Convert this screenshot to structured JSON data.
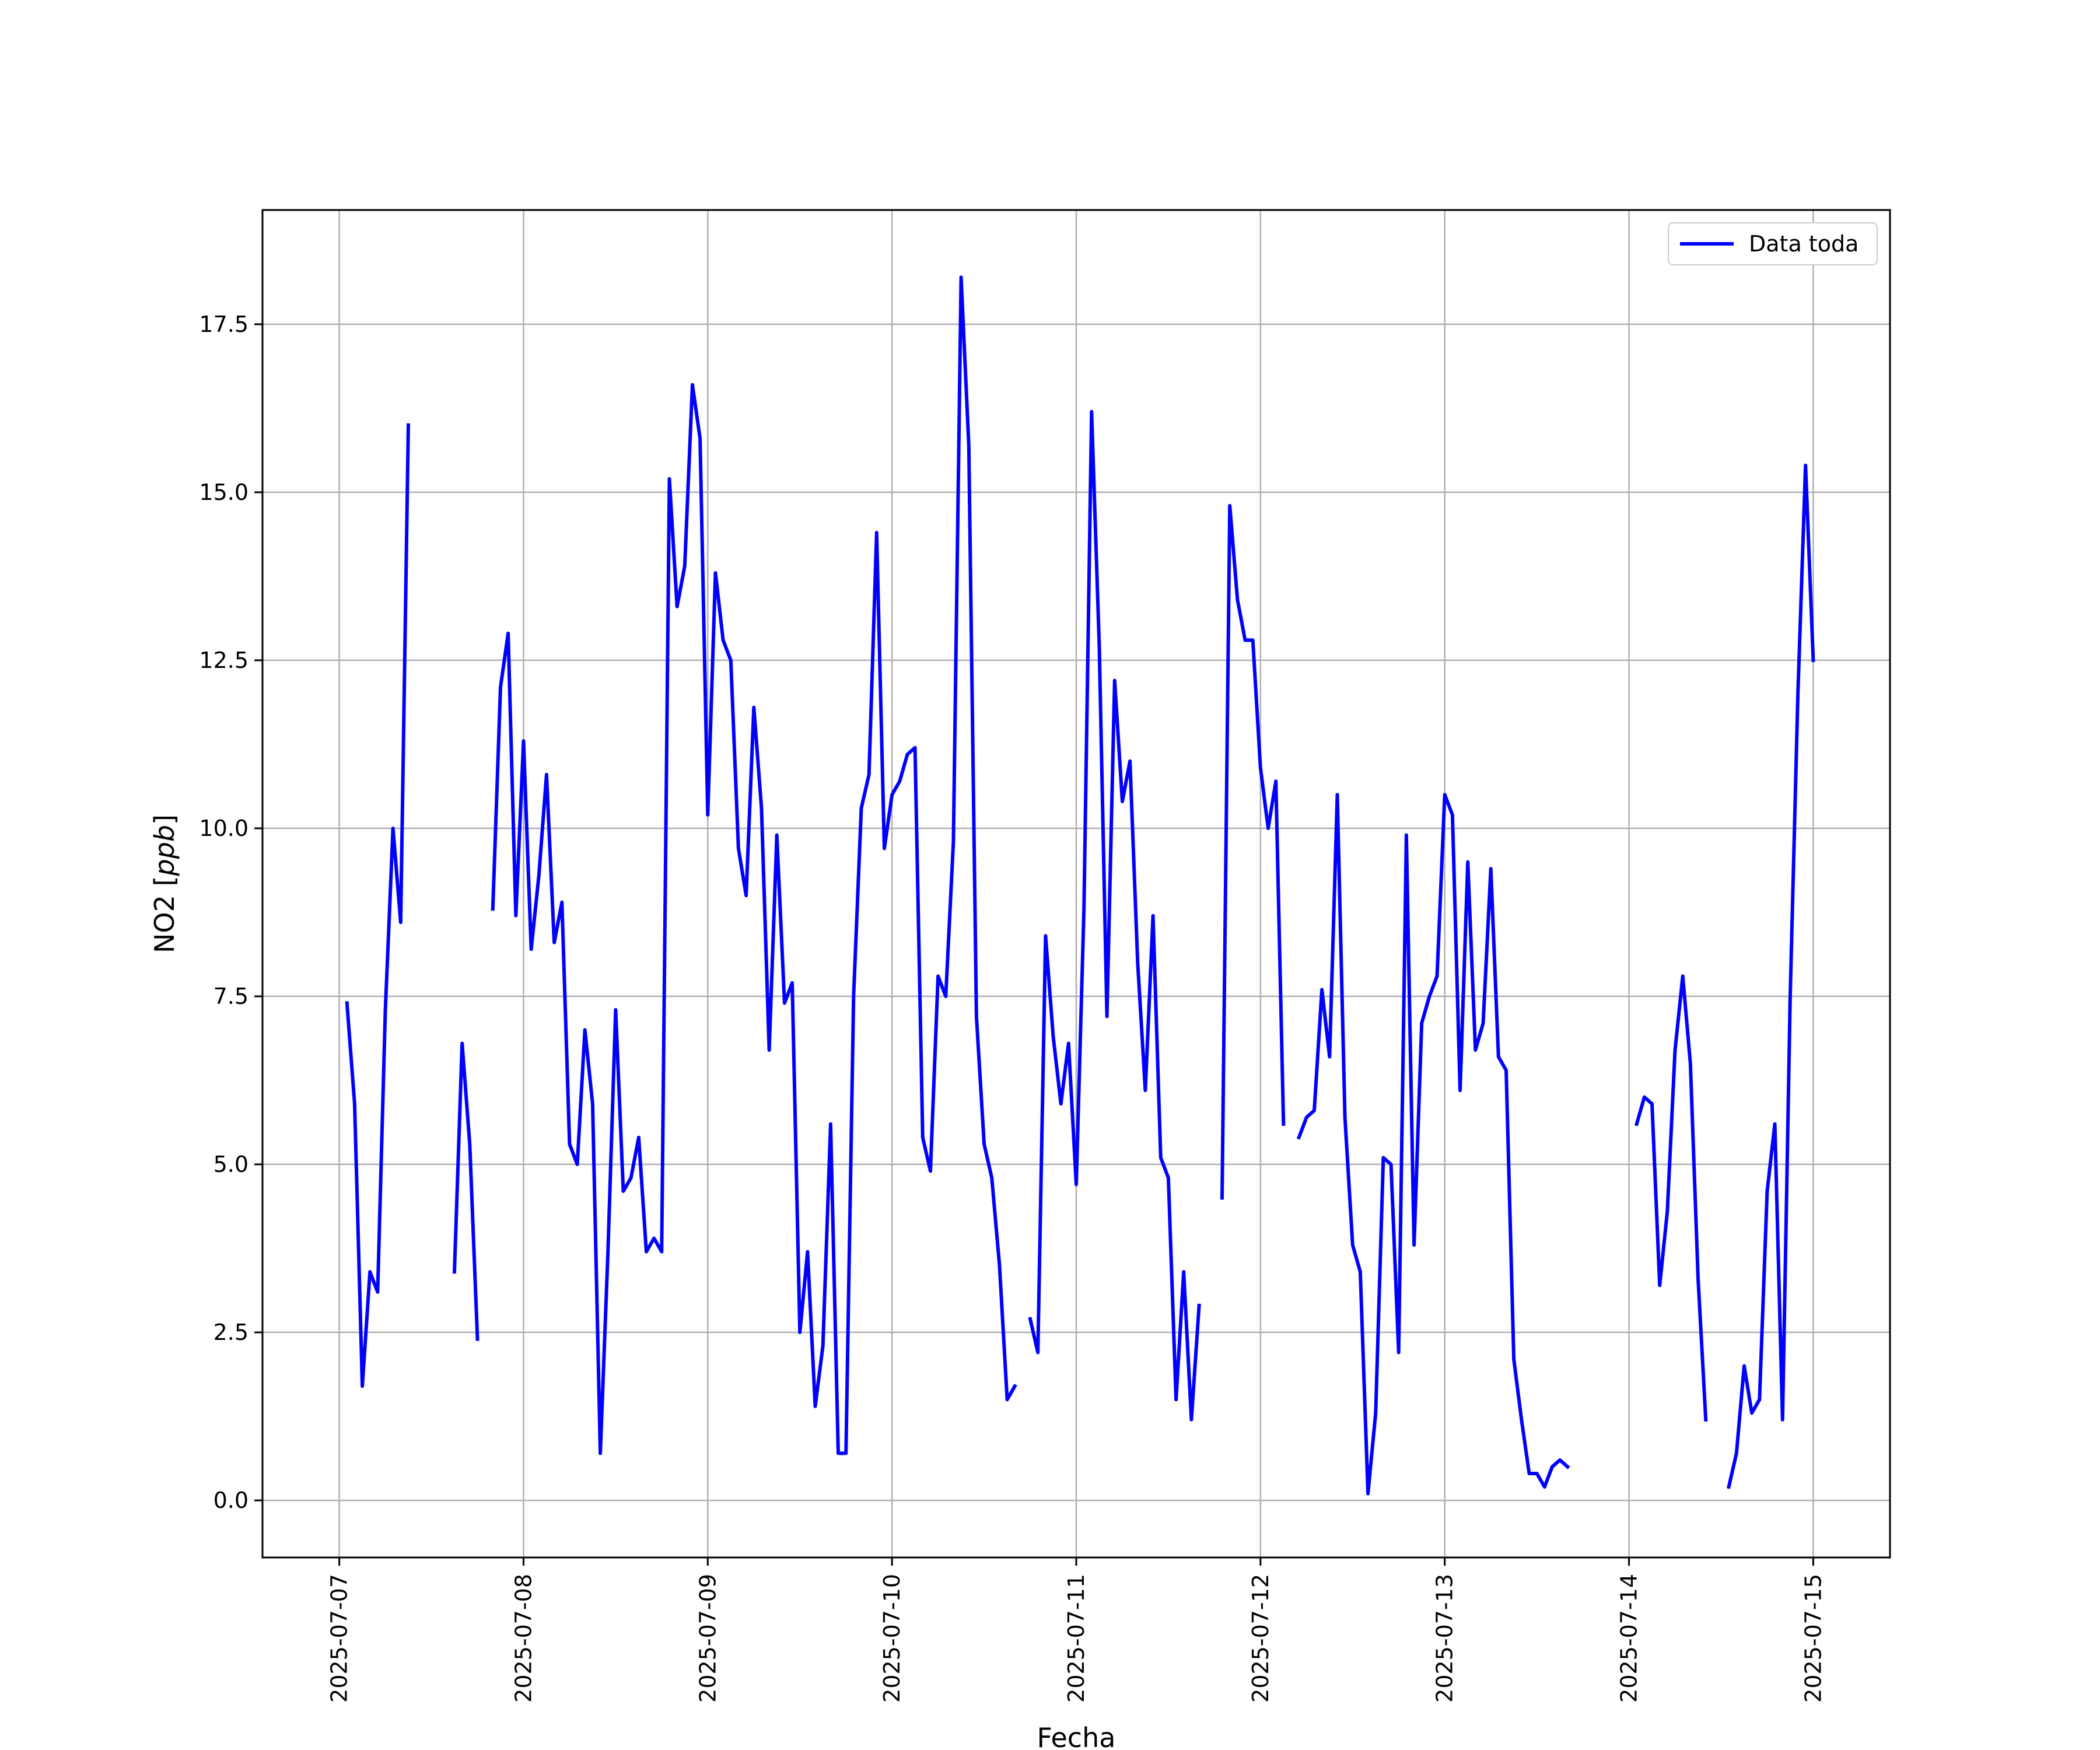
{
  "chart_data": {
    "type": "line",
    "xlabel": "Fecha",
    "ylabel": "NO2 [ppb]",
    "ylabel_main": "NO2 [",
    "ylabel_unit": "ppb",
    "ylabel_close": "]",
    "xlim": [
      "2025-07-06 14:00",
      "2025-07-15 10:00"
    ],
    "ylim": [
      -0.85,
      19.2
    ],
    "grid": true,
    "legend": {
      "position": "top-right",
      "entries": [
        "Data toda"
      ]
    },
    "x_ticks": [
      "2025-07-07",
      "2025-07-08",
      "2025-07-09",
      "2025-07-10",
      "2025-07-11",
      "2025-07-12",
      "2025-07-13",
      "2025-07-14",
      "2025-07-15"
    ],
    "y_ticks": [
      "0.0",
      "2.5",
      "5.0",
      "7.5",
      "10.0",
      "12.5",
      "15.0",
      "17.5"
    ],
    "color": "#0000ff",
    "series": [
      {
        "name": "Data toda",
        "segments": [
          [
            [
              "2025-07-07 01:00",
              7.4
            ],
            [
              "2025-07-07 02:00",
              5.9
            ],
            [
              "2025-07-07 03:00",
              1.7
            ],
            [
              "2025-07-07 04:00",
              3.4
            ],
            [
              "2025-07-07 05:00",
              3.1
            ],
            [
              "2025-07-07 06:00",
              7.3
            ],
            [
              "2025-07-07 07:00",
              10.0
            ],
            [
              "2025-07-07 08:00",
              8.6
            ],
            [
              "2025-07-07 09:00",
              16.0
            ]
          ],
          [
            [
              "2025-07-07 15:00",
              3.4
            ],
            [
              "2025-07-07 16:00",
              6.8
            ],
            [
              "2025-07-07 17:00",
              5.3
            ],
            [
              "2025-07-07 18:00",
              2.4
            ]
          ],
          [
            [
              "2025-07-07 20:00",
              8.8
            ],
            [
              "2025-07-07 21:00",
              12.1
            ],
            [
              "2025-07-07 22:00",
              12.9
            ],
            [
              "2025-07-07 23:00",
              8.7
            ],
            [
              "2025-07-08 00:00",
              11.3
            ],
            [
              "2025-07-08 01:00",
              8.2
            ],
            [
              "2025-07-08 02:00",
              9.3
            ],
            [
              "2025-07-08 03:00",
              10.8
            ],
            [
              "2025-07-08 04:00",
              8.3
            ],
            [
              "2025-07-08 05:00",
              8.9
            ],
            [
              "2025-07-08 06:00",
              5.3
            ],
            [
              "2025-07-08 07:00",
              5.0
            ],
            [
              "2025-07-08 08:00",
              7.0
            ],
            [
              "2025-07-08 09:00",
              5.9
            ],
            [
              "2025-07-08 10:00",
              0.7
            ],
            [
              "2025-07-08 11:00",
              3.7
            ],
            [
              "2025-07-08 12:00",
              7.3
            ],
            [
              "2025-07-08 13:00",
              4.6
            ],
            [
              "2025-07-08 14:00",
              4.8
            ],
            [
              "2025-07-08 15:00",
              5.4
            ],
            [
              "2025-07-08 16:00",
              3.7
            ],
            [
              "2025-07-08 17:00",
              3.9
            ],
            [
              "2025-07-08 18:00",
              3.7
            ],
            [
              "2025-07-08 19:00",
              15.2
            ],
            [
              "2025-07-08 20:00",
              13.3
            ],
            [
              "2025-07-08 21:00",
              13.9
            ],
            [
              "2025-07-08 22:00",
              16.6
            ],
            [
              "2025-07-08 23:00",
              15.8
            ],
            [
              "2025-07-09 00:00",
              10.2
            ],
            [
              "2025-07-09 01:00",
              13.8
            ],
            [
              "2025-07-09 02:00",
              12.8
            ],
            [
              "2025-07-09 03:00",
              12.5
            ],
            [
              "2025-07-09 04:00",
              9.7
            ],
            [
              "2025-07-09 05:00",
              9.0
            ],
            [
              "2025-07-09 06:00",
              11.8
            ],
            [
              "2025-07-09 07:00",
              10.3
            ],
            [
              "2025-07-09 08:00",
              6.7
            ],
            [
              "2025-07-09 09:00",
              9.9
            ],
            [
              "2025-07-09 10:00",
              7.4
            ],
            [
              "2025-07-09 11:00",
              7.7
            ],
            [
              "2025-07-09 12:00",
              2.5
            ],
            [
              "2025-07-09 13:00",
              3.7
            ],
            [
              "2025-07-09 14:00",
              1.4
            ],
            [
              "2025-07-09 15:00",
              2.3
            ],
            [
              "2025-07-09 16:00",
              5.6
            ],
            [
              "2025-07-09 17:00",
              0.7
            ],
            [
              "2025-07-09 18:00",
              0.7
            ],
            [
              "2025-07-09 19:00",
              7.5
            ],
            [
              "2025-07-09 20:00",
              10.3
            ],
            [
              "2025-07-09 21:00",
              10.8
            ],
            [
              "2025-07-09 22:00",
              14.4
            ],
            [
              "2025-07-09 23:00",
              9.7
            ],
            [
              "2025-07-10 00:00",
              10.5
            ],
            [
              "2025-07-10 01:00",
              10.7
            ],
            [
              "2025-07-10 02:00",
              11.1
            ],
            [
              "2025-07-10 03:00",
              11.2
            ],
            [
              "2025-07-10 04:00",
              5.4
            ],
            [
              "2025-07-10 05:00",
              4.9
            ],
            [
              "2025-07-10 06:00",
              7.8
            ],
            [
              "2025-07-10 07:00",
              7.5
            ],
            [
              "2025-07-10 08:00",
              9.8
            ],
            [
              "2025-07-10 09:00",
              18.2
            ],
            [
              "2025-07-10 10:00",
              15.7
            ],
            [
              "2025-07-10 11:00",
              7.2
            ],
            [
              "2025-07-10 12:00",
              5.3
            ],
            [
              "2025-07-10 13:00",
              4.8
            ],
            [
              "2025-07-10 14:00",
              3.5
            ],
            [
              "2025-07-10 15:00",
              1.5
            ],
            [
              "2025-07-10 16:00",
              1.7
            ]
          ],
          [
            [
              "2025-07-10 18:00",
              2.7
            ],
            [
              "2025-07-10 19:00",
              2.2
            ],
            [
              "2025-07-10 20:00",
              8.4
            ],
            [
              "2025-07-10 21:00",
              6.9
            ],
            [
              "2025-07-10 22:00",
              5.9
            ],
            [
              "2025-07-10 23:00",
              6.8
            ],
            [
              "2025-07-11 00:00",
              4.7
            ],
            [
              "2025-07-11 01:00",
              8.8
            ],
            [
              "2025-07-11 02:00",
              16.2
            ],
            [
              "2025-07-11 03:00",
              12.7
            ],
            [
              "2025-07-11 04:00",
              7.2
            ],
            [
              "2025-07-11 05:00",
              12.2
            ],
            [
              "2025-07-11 06:00",
              10.4
            ],
            [
              "2025-07-11 07:00",
              11.0
            ],
            [
              "2025-07-11 08:00",
              8.0
            ],
            [
              "2025-07-11 09:00",
              6.1
            ],
            [
              "2025-07-11 10:00",
              8.7
            ],
            [
              "2025-07-11 11:00",
              5.1
            ],
            [
              "2025-07-11 12:00",
              4.8
            ],
            [
              "2025-07-11 13:00",
              1.5
            ],
            [
              "2025-07-11 14:00",
              3.4
            ],
            [
              "2025-07-11 15:00",
              1.2
            ],
            [
              "2025-07-11 16:00",
              2.9
            ]
          ],
          [
            [
              "2025-07-11 19:00",
              4.5
            ],
            [
              "2025-07-11 20:00",
              14.8
            ],
            [
              "2025-07-11 21:00",
              13.4
            ],
            [
              "2025-07-11 22:00",
              12.8
            ],
            [
              "2025-07-11 23:00",
              12.8
            ],
            [
              "2025-07-12 00:00",
              10.9
            ],
            [
              "2025-07-12 01:00",
              10.0
            ],
            [
              "2025-07-12 02:00",
              10.7
            ],
            [
              "2025-07-12 03:00",
              5.6
            ]
          ],
          [
            [
              "2025-07-12 05:00",
              5.4
            ],
            [
              "2025-07-12 06:00",
              5.7
            ],
            [
              "2025-07-12 07:00",
              5.8
            ],
            [
              "2025-07-12 08:00",
              7.6
            ],
            [
              "2025-07-12 09:00",
              6.6
            ],
            [
              "2025-07-12 10:00",
              10.5
            ],
            [
              "2025-07-12 11:00",
              5.7
            ],
            [
              "2025-07-12 12:00",
              3.8
            ],
            [
              "2025-07-12 13:00",
              3.4
            ],
            [
              "2025-07-12 14:00",
              0.1
            ],
            [
              "2025-07-12 15:00",
              1.3
            ],
            [
              "2025-07-12 16:00",
              5.1
            ],
            [
              "2025-07-12 17:00",
              5.0
            ],
            [
              "2025-07-12 18:00",
              2.2
            ],
            [
              "2025-07-12 19:00",
              9.9
            ],
            [
              "2025-07-12 20:00",
              3.8
            ],
            [
              "2025-07-12 21:00",
              7.1
            ],
            [
              "2025-07-12 22:00",
              7.5
            ],
            [
              "2025-07-12 23:00",
              7.8
            ],
            [
              "2025-07-13 00:00",
              10.5
            ],
            [
              "2025-07-13 01:00",
              10.2
            ],
            [
              "2025-07-13 02:00",
              6.1
            ],
            [
              "2025-07-13 03:00",
              9.5
            ],
            [
              "2025-07-13 04:00",
              6.7
            ],
            [
              "2025-07-13 05:00",
              7.1
            ],
            [
              "2025-07-13 06:00",
              9.4
            ],
            [
              "2025-07-13 07:00",
              6.6
            ],
            [
              "2025-07-13 08:00",
              6.4
            ],
            [
              "2025-07-13 09:00",
              2.1
            ],
            [
              "2025-07-13 10:00",
              1.2
            ],
            [
              "2025-07-13 11:00",
              0.4
            ],
            [
              "2025-07-13 12:00",
              0.4
            ],
            [
              "2025-07-13 13:00",
              0.2
            ],
            [
              "2025-07-13 14:00",
              0.5
            ],
            [
              "2025-07-13 15:00",
              0.6
            ],
            [
              "2025-07-13 16:00",
              0.5
            ]
          ],
          [
            [
              "2025-07-14 01:00",
              5.6
            ],
            [
              "2025-07-14 02:00",
              6.0
            ],
            [
              "2025-07-14 03:00",
              5.9
            ],
            [
              "2025-07-14 04:00",
              3.2
            ],
            [
              "2025-07-14 05:00",
              4.3
            ],
            [
              "2025-07-14 06:00",
              6.7
            ],
            [
              "2025-07-14 07:00",
              7.8
            ],
            [
              "2025-07-14 08:00",
              6.5
            ],
            [
              "2025-07-14 09:00",
              3.3
            ],
            [
              "2025-07-14 10:00",
              1.2
            ]
          ],
          [
            [
              "2025-07-14 13:00",
              0.2
            ],
            [
              "2025-07-14 14:00",
              0.7
            ],
            [
              "2025-07-14 15:00",
              2.0
            ],
            [
              "2025-07-14 16:00",
              1.3
            ],
            [
              "2025-07-14 17:00",
              1.5
            ],
            [
              "2025-07-14 18:00",
              4.6
            ],
            [
              "2025-07-14 19:00",
              5.6
            ],
            [
              "2025-07-14 20:00",
              1.2
            ],
            [
              "2025-07-14 21:00",
              7.5
            ],
            [
              "2025-07-14 22:00",
              12.0
            ],
            [
              "2025-07-14 23:00",
              15.4
            ],
            [
              "2025-07-15 00:00",
              12.5
            ]
          ]
        ]
      }
    ]
  }
}
